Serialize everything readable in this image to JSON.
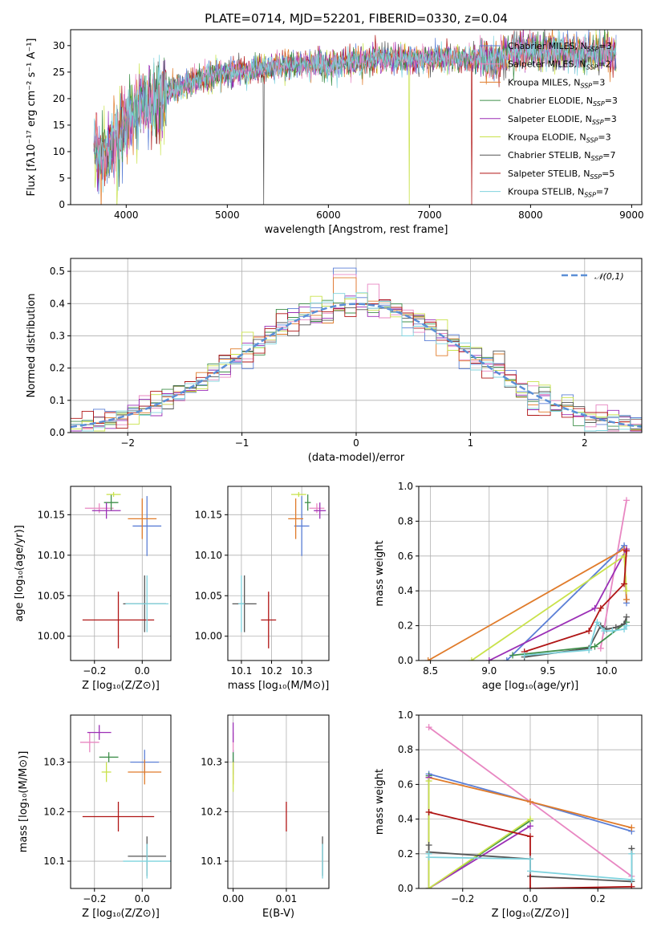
{
  "colors": {
    "Chabrier MILES": "#5b7fd6",
    "Salpeter MILES": "#e887c2",
    "Kroupa MILES": "#e07b2a",
    "Chabrier ELODIE": "#3f8f4a",
    "Salpeter ELODIE": "#9b2fb6",
    "Kroupa ELODIE": "#c9e24b",
    "Chabrier STELIB": "#555555",
    "Salpeter STELIB": "#b01515",
    "Kroupa STELIB": "#7fd3de"
  },
  "chart_data": [
    {
      "id": "spectrum",
      "type": "line",
      "title": "PLATE=0714, MJD=52201, FIBERID=0330, z=0.04",
      "xlabel": "wavelength [Angstrom, rest frame]",
      "ylabel": "Flux [fλ10⁻¹⁷ erg cm⁻² s⁻¹ A⁻¹]",
      "xlim": [
        3450,
        9100
      ],
      "ylim": [
        0,
        33
      ],
      "xticks": [
        4000,
        5000,
        6000,
        7000,
        8000,
        9000
      ],
      "yticks": [
        0,
        5,
        10,
        15,
        20,
        25,
        30
      ],
      "legend_position": "top-right",
      "legend": [
        {
          "name": "Chabrier MILES",
          "nssp": "3"
        },
        {
          "name": "Salpeter MILES",
          "nssp": "2"
        },
        {
          "name": "Kroupa MILES",
          "nssp": "3"
        },
        {
          "name": "Chabrier ELODIE",
          "nssp": "3"
        },
        {
          "name": "Salpeter ELODIE",
          "nssp": "3"
        },
        {
          "name": "Kroupa ELODIE",
          "nssp": "3"
        },
        {
          "name": "Chabrier STELIB",
          "nssp": "7"
        },
        {
          "name": "Salpeter STELIB",
          "nssp": "5"
        },
        {
          "name": "Kroupa STELIB",
          "nssp": "7"
        }
      ],
      "continuum": {
        "x": [
          3680,
          3800,
          3900,
          4000,
          4100,
          4200,
          4300,
          4400,
          4500,
          4700,
          4900,
          5100,
          5300,
          5500,
          5700,
          5900,
          6100,
          6300,
          6500,
          6700,
          6900,
          7100,
          7300,
          7500,
          7700,
          7900,
          8200,
          8500,
          8850
        ],
        "y": [
          11,
          9,
          12,
          15,
          18,
          19,
          19.5,
          21,
          22,
          23.5,
          24.5,
          25,
          25.5,
          26,
          26.5,
          26.5,
          26.5,
          27,
          27.5,
          27.5,
          27.5,
          27.5,
          27.5,
          27.5,
          27.5,
          29,
          29,
          28.5,
          28.5
        ]
      },
      "dips": [
        {
          "x": 3910,
          "series": "Kroupa ELODIE"
        },
        {
          "x": 5360,
          "series": "Chabrier STELIB"
        },
        {
          "x": 6800,
          "series": "Kroupa ELODIE"
        },
        {
          "x": 7420,
          "series": "Salpeter STELIB"
        }
      ]
    },
    {
      "id": "residuals",
      "type": "line",
      "xlabel": "(data-model)/error",
      "ylabel": "Normed distribution",
      "xlim": [
        -2.5,
        2.5
      ],
      "ylim": [
        0,
        0.54
      ],
      "xticks": [
        -2,
        -1,
        0,
        1,
        2
      ],
      "yticks": [
        0.0,
        0.1,
        0.2,
        0.3,
        0.4,
        0.5
      ],
      "legend_position": "top-right",
      "normal_label": "𝒩(0,1)",
      "bin_width": 0.1,
      "peaks": [
        0.51,
        0.49,
        0.48,
        0.46,
        0.45,
        0.43,
        0.44,
        0.42,
        0.41
      ]
    },
    {
      "id": "age-vs-Z",
      "type": "scatter",
      "xlabel": "Z [log₁₀(Z/Z⊙)]",
      "ylabel": "age  [log₁₀(age/yr)]",
      "xlim": [
        -0.3,
        0.12
      ],
      "ylim": [
        9.97,
        10.185
      ],
      "xticks": [
        -0.2,
        0.0
      ],
      "yticks": [
        10.0,
        10.05,
        10.1,
        10.15
      ],
      "points": [
        {
          "series": "Chabrier MILES",
          "x": 0.02,
          "xerr": 0.06,
          "y": 10.136,
          "yerr": 0.037
        },
        {
          "series": "Salpeter MILES",
          "x": -0.18,
          "xerr": 0.06,
          "y": 10.158,
          "yerr": 0.006
        },
        {
          "series": "Kroupa MILES",
          "x": 0.0,
          "xerr": 0.06,
          "y": 10.145,
          "yerr": 0.025
        },
        {
          "series": "Chabrier ELODIE",
          "x": -0.13,
          "xerr": 0.03,
          "y": 10.165,
          "yerr": 0.01
        },
        {
          "series": "Salpeter ELODIE",
          "x": -0.15,
          "xerr": 0.06,
          "y": 10.155,
          "yerr": 0.01
        },
        {
          "series": "Kroupa ELODIE",
          "x": -0.12,
          "xerr": 0.03,
          "y": 10.175,
          "yerr": 0.003
        },
        {
          "series": "Chabrier STELIB",
          "x": 0.01,
          "xerr": 0.09,
          "y": 10.04,
          "yerr": 0.035
        },
        {
          "series": "Salpeter STELIB",
          "x": -0.1,
          "xerr": 0.15,
          "y": 10.02,
          "yerr": 0.035
        },
        {
          "series": "Kroupa STELIB",
          "x": 0.02,
          "xerr": 0.09,
          "y": 10.04,
          "yerr": 0.035
        }
      ]
    },
    {
      "id": "age-vs-mass",
      "type": "scatter",
      "xlabel": "mass [log₁₀(M/M⊙)]",
      "ylabel": "",
      "xlim": [
        10.055,
        10.39
      ],
      "ylim": [
        9.97,
        10.185
      ],
      "xticks": [
        10.1,
        10.2,
        10.3
      ],
      "yticks": [
        10.0,
        10.05,
        10.1,
        10.15
      ],
      "points": [
        {
          "series": "Chabrier MILES",
          "x": 10.3,
          "xerr": 0.025,
          "y": 10.136,
          "yerr": 0.037
        },
        {
          "series": "Salpeter MILES",
          "x": 10.35,
          "xerr": 0.025,
          "y": 10.158,
          "yerr": 0.006
        },
        {
          "series": "Kroupa MILES",
          "x": 10.28,
          "xerr": 0.025,
          "y": 10.145,
          "yerr": 0.025
        },
        {
          "series": "Chabrier ELODIE",
          "x": 10.32,
          "xerr": 0.01,
          "y": 10.165,
          "yerr": 0.01
        },
        {
          "series": "Salpeter ELODIE",
          "x": 10.36,
          "xerr": 0.02,
          "y": 10.155,
          "yerr": 0.01
        },
        {
          "series": "Kroupa ELODIE",
          "x": 10.29,
          "xerr": 0.025,
          "y": 10.175,
          "yerr": 0.003
        },
        {
          "series": "Chabrier STELIB",
          "x": 10.11,
          "xerr": 0.04,
          "y": 10.04,
          "yerr": 0.035
        },
        {
          "series": "Salpeter STELIB",
          "x": 10.19,
          "xerr": 0.025,
          "y": 10.02,
          "yerr": 0.035
        },
        {
          "series": "Kroupa STELIB",
          "x": 10.1,
          "xerr": 0.01,
          "y": 10.04,
          "yerr": 0.035
        }
      ]
    },
    {
      "id": "weight-vs-age",
      "type": "line",
      "xlabel": "age  [log₁₀(age/yr)]",
      "ylabel": "mass weight",
      "xlim": [
        8.4,
        10.3
      ],
      "ylim": [
        0,
        1.0
      ],
      "xticks": [
        8.5,
        9.0,
        9.5,
        10.0
      ],
      "yticks": [
        0.0,
        0.2,
        0.4,
        0.6,
        0.8,
        1.0
      ],
      "series": [
        {
          "name": "Chabrier MILES",
          "x": [
            9.15,
            10.15,
            10.17
          ],
          "y": [
            0.0,
            0.66,
            0.33
          ]
        },
        {
          "name": "Salpeter MILES",
          "x": [
            9.95,
            10.17
          ],
          "y": [
            0.07,
            0.92
          ]
        },
        {
          "name": "Kroupa MILES",
          "x": [
            8.48,
            10.15,
            10.17
          ],
          "y": [
            0.0,
            0.64,
            0.35
          ]
        },
        {
          "name": "Chabrier ELODIE",
          "x": [
            9.2,
            9.9,
            10.17
          ],
          "y": [
            0.03,
            0.08,
            0.22
          ]
        },
        {
          "name": "Salpeter ELODIE",
          "x": [
            9.0,
            9.9,
            10.17
          ],
          "y": [
            0.0,
            0.3,
            0.64
          ]
        },
        {
          "name": "Kroupa ELODIE",
          "x": [
            8.85,
            10.15,
            10.17
          ],
          "y": [
            0.0,
            0.6,
            0.4
          ]
        },
        {
          "name": "Chabrier STELIB",
          "x": [
            9.3,
            9.85,
            9.95,
            10.0,
            10.08,
            10.15,
            10.17
          ],
          "y": [
            0.02,
            0.07,
            0.2,
            0.18,
            0.19,
            0.21,
            0.25
          ]
        },
        {
          "name": "Salpeter STELIB",
          "x": [
            9.3,
            9.85,
            9.95,
            10.15,
            10.17
          ],
          "y": [
            0.05,
            0.17,
            0.3,
            0.44,
            0.63
          ]
        },
        {
          "name": "Kroupa STELIB",
          "x": [
            9.3,
            9.85,
            9.92,
            9.98,
            10.05,
            10.15,
            10.17
          ],
          "y": [
            0.03,
            0.06,
            0.22,
            0.17,
            0.17,
            0.18,
            0.2
          ]
        }
      ]
    },
    {
      "id": "mass-vs-Z",
      "type": "scatter",
      "xlabel": "Z [log₁₀(Z/Z⊙)]",
      "ylabel": "mass [log₁₀(M/M⊙)]",
      "xlim": [
        -0.3,
        0.12
      ],
      "ylim": [
        10.045,
        10.395
      ],
      "xticks": [
        -0.2,
        0.0
      ],
      "yticks": [
        10.1,
        10.2,
        10.3
      ],
      "points": [
        {
          "series": "Chabrier MILES",
          "x": 0.01,
          "xerr": 0.06,
          "y": 10.3,
          "yerr": 0.025
        },
        {
          "series": "Salpeter MILES",
          "x": -0.22,
          "xerr": 0.04,
          "y": 10.34,
          "yerr": 0.02
        },
        {
          "series": "Kroupa MILES",
          "x": 0.01,
          "xerr": 0.07,
          "y": 10.28,
          "yerr": 0.025
        },
        {
          "series": "Chabrier ELODIE",
          "x": -0.14,
          "xerr": 0.04,
          "y": 10.31,
          "yerr": 0.01
        },
        {
          "series": "Salpeter ELODIE",
          "x": -0.18,
          "xerr": 0.05,
          "y": 10.36,
          "yerr": 0.015
        },
        {
          "series": "Kroupa ELODIE",
          "x": -0.15,
          "xerr": 0.02,
          "y": 10.28,
          "yerr": 0.02
        },
        {
          "series": "Chabrier STELIB",
          "x": 0.02,
          "xerr": 0.08,
          "y": 10.11,
          "yerr": 0.04
        },
        {
          "series": "Salpeter STELIB",
          "x": -0.1,
          "xerr": 0.15,
          "y": 10.19,
          "yerr": 0.03
        },
        {
          "series": "Kroupa STELIB",
          "x": 0.02,
          "xerr": 0.1,
          "y": 10.1,
          "yerr": 0.035
        }
      ]
    },
    {
      "id": "mass-vs-EBV",
      "type": "scatter",
      "xlabel": "E(B-V)",
      "ylabel": "",
      "xlim": [
        -0.001,
        0.018
      ],
      "ylim": [
        10.045,
        10.395
      ],
      "xticks": [
        0.0,
        0.01
      ],
      "yticks": [
        10.1,
        10.2,
        10.3
      ],
      "points": [
        {
          "series": "Chabrier MILES",
          "x": 0.0,
          "xerr": 0.0,
          "y": 10.3,
          "yerr": 0.025
        },
        {
          "series": "Salpeter MILES",
          "x": 0.0,
          "xerr": 0.0,
          "y": 10.34,
          "yerr": 0.02
        },
        {
          "series": "Kroupa MILES",
          "x": 0.0,
          "xerr": 0.0,
          "y": 10.28,
          "yerr": 0.025
        },
        {
          "series": "Chabrier ELODIE",
          "x": 0.0,
          "xerr": 0.0,
          "y": 10.31,
          "yerr": 0.01
        },
        {
          "series": "Salpeter ELODIE",
          "x": 0.0,
          "xerr": 0.0,
          "y": 10.36,
          "yerr": 0.02
        },
        {
          "series": "Kroupa ELODIE",
          "x": 0.0,
          "xerr": 0.0,
          "y": 10.27,
          "yerr": 0.03
        },
        {
          "series": "Chabrier STELIB",
          "x": 0.0168,
          "xerr": 0.0,
          "y": 10.11,
          "yerr": 0.04
        },
        {
          "series": "Salpeter STELIB",
          "x": 0.01,
          "xerr": 0.0,
          "y": 10.19,
          "yerr": 0.03
        },
        {
          "series": "Kroupa STELIB",
          "x": 0.0168,
          "xerr": 0.0,
          "y": 10.1,
          "yerr": 0.035
        }
      ]
    },
    {
      "id": "weight-vs-Z",
      "type": "line",
      "xlabel": "Z [log₁₀(Z/Z⊙)]",
      "ylabel": "mass weight",
      "xlim": [
        -0.33,
        0.33
      ],
      "ylim": [
        0,
        1.0
      ],
      "xticks": [
        -0.2,
        0.0,
        0.2
      ],
      "yticks": [
        0.0,
        0.2,
        0.4,
        0.6,
        0.8,
        1.0
      ],
      "series": [
        {
          "name": "Chabrier MILES",
          "x": [
            -0.3,
            0.0,
            0.3
          ],
          "y": [
            0.66,
            0.5,
            0.33
          ]
        },
        {
          "name": "Salpeter MILES",
          "x": [
            -0.3,
            0.0,
            0.3
          ],
          "y": [
            0.93,
            0.5,
            0.07
          ]
        },
        {
          "name": "Kroupa MILES",
          "x": [
            -0.3,
            0.0,
            0.3
          ],
          "y": [
            0.64,
            0.5,
            0.35
          ]
        },
        {
          "name": "Chabrier ELODIE",
          "x": [
            -0.3,
            -0.3,
            0.0
          ],
          "y": [
            0.65,
            0.0,
            0.39
          ]
        },
        {
          "name": "Salpeter ELODIE",
          "x": [
            -0.3,
            -0.3,
            0.0
          ],
          "y": [
            0.64,
            0.0,
            0.36
          ]
        },
        {
          "name": "Kroupa ELODIE",
          "x": [
            -0.3,
            -0.3,
            0.0
          ],
          "y": [
            0.62,
            0.0,
            0.4
          ]
        },
        {
          "name": "Chabrier STELIB",
          "x": [
            -0.3,
            -0.3,
            0.0,
            0.0,
            0.3,
            0.3
          ],
          "y": [
            0.25,
            0.21,
            0.17,
            0.07,
            0.04,
            0.23
          ]
        },
        {
          "name": "Salpeter STELIB",
          "x": [
            -0.3,
            0.0,
            0.0,
            0.3,
            0.3
          ],
          "y": [
            0.44,
            0.3,
            0.0,
            0.01,
            0.01
          ]
        },
        {
          "name": "Kroupa STELIB",
          "x": [
            -0.3,
            -0.3,
            0.0,
            0.0,
            0.3,
            0.3
          ],
          "y": [
            0.2,
            0.18,
            0.17,
            0.1,
            0.05,
            0.2
          ]
        }
      ]
    }
  ]
}
